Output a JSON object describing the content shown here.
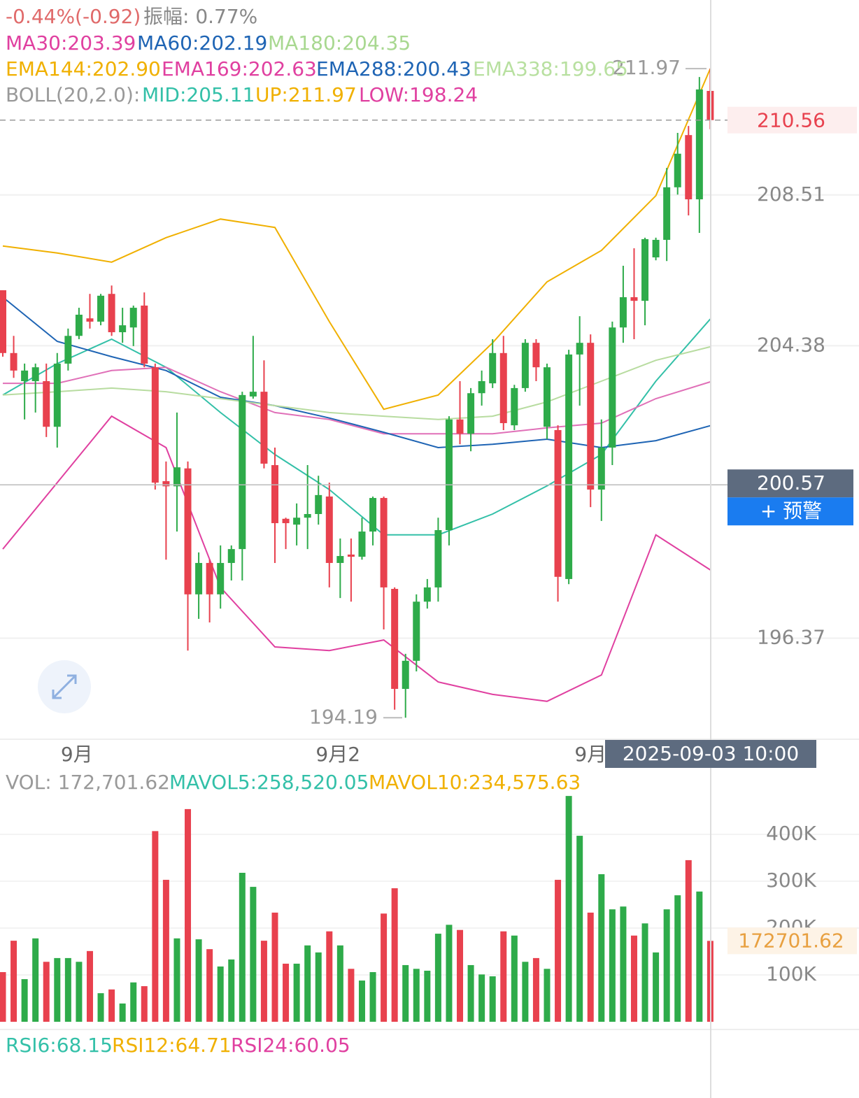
{
  "chart_data": {
    "type": "candlestick",
    "header": {
      "change": "-0.44%(-0.92)",
      "amplitude": "振幅: 0.77%"
    },
    "legend_ma": [
      {
        "label": "MA30:203.39",
        "color": "#e040a0"
      },
      {
        "label": "MA60:202.19",
        "color": "#1e64b4"
      },
      {
        "label": "MA180:204.35",
        "color": "#a8d890"
      }
    ],
    "legend_ema": [
      {
        "label": "EMA144:202.90",
        "color": "#f0b000"
      },
      {
        "label": "EMA169:202.63",
        "color": "#e040a0"
      },
      {
        "label": "EMA288:200.43",
        "color": "#1e64b4"
      },
      {
        "label": "EMA338:199.65",
        "color": "#b8e0a0"
      }
    ],
    "legend_boll": [
      {
        "label": "BOLL(20,2.0):",
        "color": "#999999"
      },
      {
        "label": "MID:205.11",
        "color": "#33c0a8"
      },
      {
        "label": "UP:211.97",
        "color": "#f0b000"
      },
      {
        "label": "LOW:198.24",
        "color": "#e040a0"
      }
    ],
    "legend_vol": [
      {
        "label": "VOL: 172,701.62",
        "color": "#999999"
      },
      {
        "label": "MAVOL5:258,520.05",
        "color": "#33c0a8"
      },
      {
        "label": "MAVOL10:234,575.63",
        "color": "#f0b000"
      }
    ],
    "legend_rsi": [
      {
        "label": "RSI6:68.15",
        "color": "#33c0a8"
      },
      {
        "label": "RSI12:64.71",
        "color": "#f0b000"
      },
      {
        "label": "RSI24:60.05",
        "color": "#e040a0"
      }
    ],
    "up_color": "#2eab4a",
    "down_color": "#e8414e",
    "candles": {
      "open": [
        205.9,
        204.18,
        203.41,
        203.41,
        203.41,
        202.16,
        203.89,
        204.65,
        205.13,
        205.04,
        205.8,
        204.75,
        204.88,
        205.48,
        203.79,
        200.67,
        200.53,
        201.02,
        197.57,
        198.43,
        197.57,
        198.43,
        198.81,
        202.99,
        203.12,
        201.11,
        199.64,
        199.48,
        199.67,
        199.77,
        200.25,
        198.43,
        198.66,
        198.6,
        199.29,
        200.21,
        197.72,
        194.98,
        195.75,
        197.37,
        197.76,
        199.33,
        202.36,
        201.97,
        203.08,
        203.35,
        204.18,
        202.2,
        203.22,
        204.46,
        202.16,
        202.07,
        197.99,
        204.14,
        204.46,
        200.44,
        201.59,
        204.88,
        205.71,
        205.61,
        206.8,
        207.28,
        208.72,
        210.15,
        208.39,
        211.36
      ],
      "high": [
        205.9,
        204.65,
        203.89,
        203.89,
        203.89,
        204.18,
        204.85,
        205.42,
        205.8,
        205.8,
        206.03,
        205.42,
        205.48,
        205.84,
        203.89,
        201.21,
        202.55,
        201.21,
        198.72,
        198.52,
        198.91,
        198.91,
        203.12,
        204.65,
        203.98,
        201.59,
        199.67,
        200.06,
        201.11,
        200.82,
        200.63,
        199.1,
        199.1,
        199.67,
        200.25,
        200.25,
        197.76,
        195.94,
        197.57,
        197.99,
        199.67,
        202.45,
        203.41,
        203.22,
        203.7,
        204.56,
        204.65,
        203.31,
        204.56,
        204.56,
        203.89,
        202.2,
        204.27,
        205.19,
        204.69,
        202.36,
        205.04,
        206.57,
        207.05,
        207.34,
        207.34,
        209.25,
        210.21,
        210.4,
        211.74,
        211.97
      ],
      "low": [
        204.08,
        203.5,
        202.36,
        202.55,
        201.88,
        201.59,
        203.7,
        204.56,
        204.85,
        204.94,
        204.65,
        204.46,
        204.37,
        203.79,
        200.44,
        198.52,
        199.29,
        196.03,
        196.9,
        196.8,
        197.18,
        197.95,
        197.95,
        202.93,
        201.02,
        198.43,
        198.81,
        198.91,
        198.81,
        199.48,
        197.76,
        197.47,
        197.37,
        198.52,
        198.91,
        196.61,
        194.41,
        194.19,
        195.46,
        197.18,
        197.37,
        198.91,
        201.68,
        201.49,
        202.74,
        203.22,
        202.07,
        202.07,
        203.12,
        203.41,
        201.82,
        197.37,
        197.85,
        202.74,
        199.96,
        199.58,
        201.11,
        204.46,
        204.56,
        204.94,
        206.72,
        206.7,
        208.52,
        207.95,
        207.47,
        210.31
      ],
      "close": [
        204.18,
        203.7,
        203.7,
        203.79,
        202.16,
        203.89,
        204.65,
        205.23,
        205.04,
        205.75,
        204.75,
        204.94,
        205.42,
        203.89,
        200.63,
        200.53,
        201.05,
        197.57,
        198.43,
        197.57,
        198.43,
        198.81,
        203.03,
        203.12,
        201.15,
        199.52,
        199.52,
        199.67,
        199.77,
        200.29,
        198.43,
        198.62,
        198.6,
        199.29,
        200.21,
        197.76,
        194.98,
        195.75,
        197.37,
        197.76,
        199.33,
        202.36,
        201.97,
        203.08,
        203.41,
        204.18,
        202.26,
        203.22,
        204.46,
        203.79,
        203.79,
        198.05,
        204.14,
        204.46,
        200.44,
        201.59,
        204.88,
        205.71,
        205.61,
        207.3,
        207.28,
        208.72,
        209.64,
        208.39,
        211.4,
        210.56
      ]
    },
    "ylim": [
      193.64,
      213.85
    ],
    "yticks": [
      208.51,
      204.38,
      196.37
    ],
    "lines_x": [
      0,
      5,
      10,
      15,
      20,
      25,
      30,
      35,
      40,
      45,
      50,
      55,
      60,
      65
    ],
    "lines": [
      {
        "color": "#f0b000",
        "values": [
          207.11,
          206.92,
          206.67,
          207.34,
          207.85,
          207.62,
          205.04,
          202.64,
          203.03,
          204.46,
          206.13,
          206.99,
          208.49,
          211.97
        ]
      },
      {
        "color": "#33c0a8",
        "values": [
          203.03,
          203.89,
          204.56,
          203.79,
          202.55,
          201.4,
          200.44,
          199.2,
          199.2,
          199.77,
          200.54,
          201.4,
          203.41,
          205.11
        ]
      },
      {
        "color": "#e040a0",
        "values": [
          198.81,
          200.63,
          202.45,
          201.59,
          197.76,
          196.13,
          196.03,
          196.32,
          195.17,
          194.83,
          194.64,
          195.36,
          199.2,
          198.24
        ]
      },
      {
        "color": "#e070b8",
        "values": [
          203.35,
          203.35,
          203.7,
          203.79,
          203.12,
          202.55,
          202.36,
          201.97,
          201.97,
          201.97,
          202.13,
          202.26,
          202.93,
          203.39
        ]
      },
      {
        "color": "#1e64b4",
        "values": [
          205.71,
          204.5,
          204.08,
          203.7,
          202.97,
          202.74,
          202.4,
          202.01,
          201.59,
          201.68,
          201.82,
          201.59,
          201.78,
          202.19
        ]
      },
      {
        "color": "#b8dca0",
        "values": [
          203.03,
          203.12,
          203.22,
          203.12,
          202.93,
          202.74,
          202.55,
          202.45,
          202.36,
          202.45,
          202.84,
          203.41,
          203.98,
          204.35
        ]
      }
    ],
    "xlabels": [
      {
        "value": 6.8,
        "label": "9月"
      },
      {
        "value": 30.8,
        "label": "9月2"
      },
      {
        "value": 54,
        "label": "9月"
      }
    ],
    "high_marker": 211.97,
    "low_marker": 194.19,
    "current_price": 210.56,
    "crosshair": {
      "price": 200.57,
      "alert": "+ 预警",
      "time": "2025-09-03 10:00"
    },
    "volume": {
      "values": [
        106000,
        173000,
        91000,
        178000,
        128000,
        136000,
        136000,
        128000,
        151000,
        61000,
        69000,
        39000,
        84000,
        76000,
        407000,
        303000,
        178000,
        454000,
        176000,
        155000,
        118000,
        133000,
        318000,
        288000,
        173000,
        233000,
        124000,
        124000,
        163000,
        148000,
        193000,
        163000,
        113000,
        88000,
        106000,
        231000,
        285000,
        121000,
        113000,
        109000,
        188000,
        207000,
        196000,
        121000,
        101000,
        97000,
        193000,
        184000,
        128000,
        136000,
        113000,
        303000,
        482000,
        397000,
        233000,
        315000,
        240000,
        246000,
        184000,
        210000,
        148000,
        240000,
        270000,
        345000,
        278000,
        172701.62
      ],
      "ylim": [
        0,
        524000
      ],
      "yticks": [
        {
          "value": 100000,
          "label": "100K"
        },
        {
          "value": 200000,
          "label": "200K"
        },
        {
          "value": 300000,
          "label": "300K"
        },
        {
          "value": 400000,
          "label": "400K"
        }
      ],
      "current": 172701.62
    }
  }
}
